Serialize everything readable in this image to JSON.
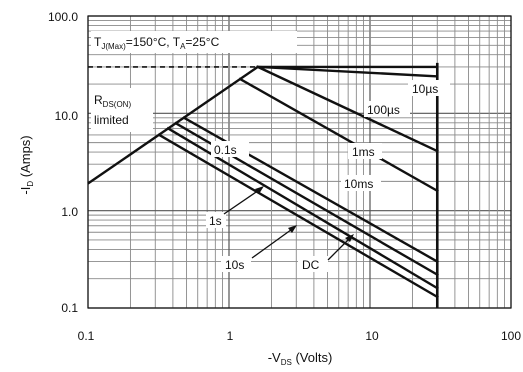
{
  "chart_data": {
    "type": "line",
    "x_scale": "log",
    "y_scale": "log",
    "xlim": [
      0.1,
      100
    ],
    "ylim": [
      0.1,
      100
    ],
    "x_ticks": [
      "0.1",
      "1",
      "10",
      "100"
    ],
    "y_ticks": [
      "100.0",
      "10.0",
      "1.0",
      "0.1"
    ],
    "xlabel": "-V",
    "xlabel_sub": "DS",
    "xlabel_suffix": " (Volts)",
    "ylabel": "-I",
    "ylabel_sub": "D",
    "ylabel_suffix": " (Amps)",
    "grid": true,
    "conditions_label": {
      "t1": "T",
      "t1_sub": "J(Max)",
      "t1_val": "=150°C, T",
      "t2_sub": "A",
      "t2_val": "=25°C"
    },
    "rds_label": {
      "r": "R",
      "r_sub": "DS(ON)",
      "line2": "limited"
    },
    "dc_label": "DC",
    "curves_labels": [
      "10µs",
      "100µs",
      "1ms",
      "10ms",
      "0.1s",
      "1s",
      "10s"
    ],
    "rds_limit_line": [
      [
        0.1,
        1.9
      ],
      [
        1.6,
        30
      ]
    ],
    "current_limit": 30,
    "voltage_limit": 30,
    "series": [
      {
        "name": "10µs",
        "x": [
          1.6,
          30
        ],
        "y": [
          30,
          30
        ]
      },
      {
        "name": "100µs",
        "x": [
          1.6,
          30
        ],
        "y": [
          30,
          24
        ]
      },
      {
        "name": "1ms",
        "x": [
          1.6,
          30
        ],
        "y": [
          30,
          4.1
        ]
      },
      {
        "name": "10ms",
        "x": [
          1.2,
          30
        ],
        "y": [
          22.5,
          1.6
        ]
      },
      {
        "name": "0.1s",
        "x": [
          0.48,
          30
        ],
        "y": [
          9,
          0.3
        ]
      },
      {
        "name": "1s",
        "x": [
          0.42,
          30
        ],
        "y": [
          7.9,
          0.22
        ]
      },
      {
        "name": "10s",
        "x": [
          0.37,
          30
        ],
        "y": [
          7.0,
          0.16
        ]
      },
      {
        "name": "DC",
        "x": [
          0.32,
          30
        ],
        "y": [
          6.0,
          0.13
        ]
      }
    ]
  }
}
